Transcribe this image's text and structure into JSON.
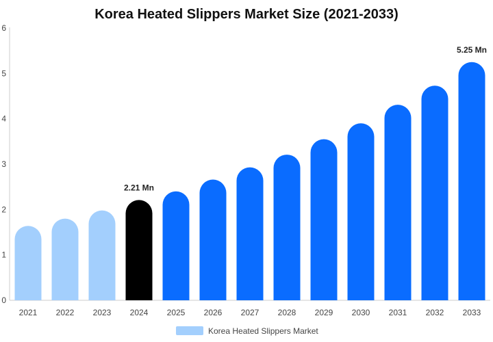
{
  "chart_data": {
    "type": "bar",
    "title": "Korea Heated Slippers Market Size (2021-2033)",
    "xlabel": "",
    "ylabel": "",
    "categories": [
      "2021",
      "2022",
      "2023",
      "2024",
      "2025",
      "2026",
      "2027",
      "2028",
      "2029",
      "2030",
      "2031",
      "2032",
      "2033"
    ],
    "series": [
      {
        "name": "Korea Heated Slippers Market",
        "values": [
          1.64,
          1.8,
          1.98,
          2.21,
          2.4,
          2.66,
          2.93,
          3.21,
          3.55,
          3.9,
          4.31,
          4.73,
          5.25
        ]
      }
    ],
    "ylim": [
      0,
      6
    ],
    "yticks": [
      "0",
      "1",
      "2",
      "3",
      "4",
      "5",
      "6"
    ],
    "data_labels": [
      {
        "category": "2024",
        "text": "2.21 Mn"
      },
      {
        "category": "2033",
        "text": "5.25 Mn"
      }
    ],
    "colors": {
      "historical": "#a3cffd",
      "base_year": "#000000",
      "forecast": "#0a6cff",
      "legend": "#a3cffd"
    },
    "grid": false,
    "legend": "bottom-center"
  }
}
